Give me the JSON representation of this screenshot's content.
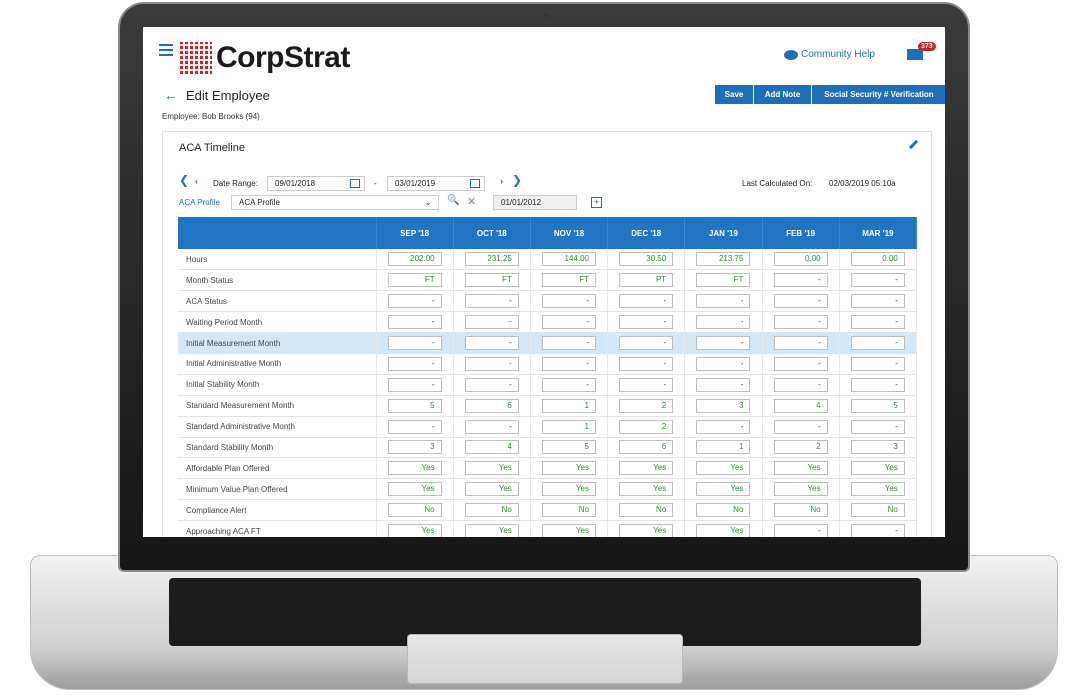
{
  "app": {
    "logo": "CorpStrat",
    "community_help": "Community Help",
    "notification_count": "373"
  },
  "page": {
    "title": "Edit Employee",
    "employee": "Employee: Bob Brooks (94)",
    "buttons": {
      "save": "Save",
      "add_note": "Add Note",
      "ssn": "Social Security # Verification"
    }
  },
  "card": {
    "title": "ACA Timeline",
    "date_range_label": "Date Range:",
    "date_from": "09/01/2018",
    "date_sep": "-",
    "date_to": "03/01/2019",
    "last_calc_label": "Last Calculated On:",
    "last_calc_value": "02/03/2019 05:10a",
    "profile_label": "ACA Profile",
    "profile_value": "ACA Profile",
    "profile_date": "01/01/2012"
  },
  "table": {
    "columns": [
      "SEP '18",
      "OCT '18",
      "NOV '18",
      "DEC '18",
      "JAN '19",
      "FEB '19",
      "MAR '19"
    ],
    "rows": [
      {
        "label": "Hours",
        "values": [
          "202.00",
          "231.25",
          "144.00",
          "30.50",
          "213.75",
          "0.00",
          "0.00"
        ]
      },
      {
        "label": "Month Status",
        "values": [
          "FT",
          "FT",
          "FT",
          "PT",
          "FT",
          "-",
          "-"
        ]
      },
      {
        "label": "ACA Status",
        "values": [
          "-",
          "-",
          "-",
          "-",
          "-",
          "-",
          "-"
        ]
      },
      {
        "label": "Waiting Period Month",
        "values": [
          "-",
          "-",
          "-",
          "-",
          "-",
          "-",
          "-"
        ]
      },
      {
        "label": "Initial Measurement Month",
        "values": [
          "-",
          "-",
          "-",
          "-",
          "-",
          "-",
          "-"
        ]
      },
      {
        "label": "Initial Administrative Month",
        "values": [
          "-",
          "-",
          "-",
          "-",
          "-",
          "-",
          "-"
        ]
      },
      {
        "label": "Initial Stability Month",
        "values": [
          "-",
          "-",
          "-",
          "-",
          "-",
          "-",
          "-"
        ]
      },
      {
        "label": "Standard Measurement Month",
        "values": [
          "5",
          "6",
          "1",
          "2",
          "3",
          "4",
          "5"
        ]
      },
      {
        "label": "Standard Administrative Month",
        "values": [
          "-",
          "-",
          "1",
          "2",
          "-",
          "-",
          "-"
        ]
      },
      {
        "label": "Standard Stability Month",
        "values": [
          "3",
          "4",
          "5",
          "6",
          "1",
          "2",
          "3"
        ]
      },
      {
        "label": "Affordable Plan Offered",
        "values": [
          "Yes",
          "Yes",
          "Yes",
          "Yes",
          "Yes",
          "Yes",
          "Yes"
        ]
      },
      {
        "label": "Minimum Value Plan Offered",
        "values": [
          "Yes",
          "Yes",
          "Yes",
          "Yes",
          "Yes",
          "Yes",
          "Yes"
        ]
      },
      {
        "label": "Compliance Alert",
        "values": [
          "No",
          "No",
          "No",
          "No",
          "No",
          "No",
          "No"
        ]
      },
      {
        "label": "Approaching ACA FT",
        "values": [
          "Yes",
          "Yes",
          "Yes",
          "Yes",
          "Yes",
          "-",
          "-"
        ]
      }
    ]
  }
}
